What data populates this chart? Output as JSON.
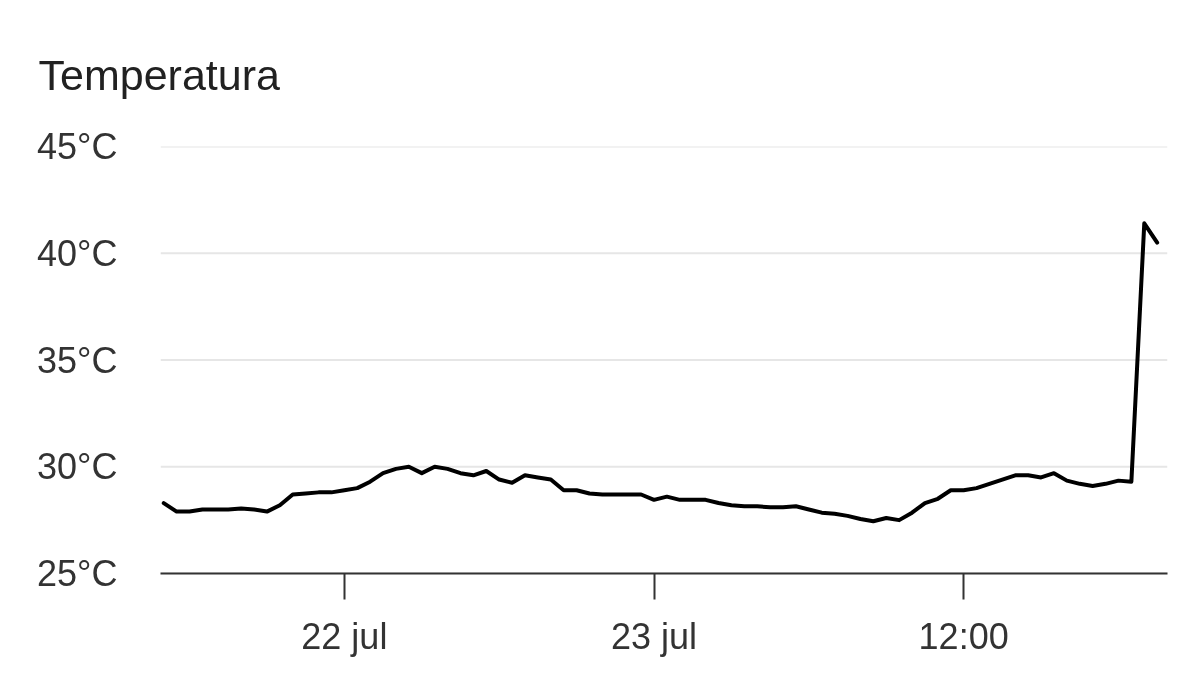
{
  "chart_data": {
    "type": "line",
    "title": "Temperatura",
    "categories": [
      null,
      null,
      null,
      null,
      null,
      null,
      null,
      null,
      null,
      null,
      null,
      null,
      null,
      null,
      "22 jul",
      null,
      null,
      null,
      null,
      null,
      null,
      null,
      null,
      null,
      null,
      null,
      null,
      null,
      null,
      null,
      null,
      null,
      null,
      null,
      null,
      null,
      null,
      null,
      "23 jul",
      null,
      null,
      null,
      null,
      null,
      null,
      null,
      null,
      null,
      null,
      null,
      null,
      null,
      null,
      null,
      null,
      null,
      null,
      null,
      null,
      null,
      null,
      null,
      "12:00",
      null,
      null,
      null,
      null,
      null,
      null,
      null,
      null,
      null,
      null,
      null,
      null,
      null,
      null,
      null
    ],
    "series": [
      {
        "color": "#000000",
        "values": [
          28.3,
          27.9,
          27.9,
          28.0,
          28.0,
          28.0,
          28.05,
          28.0,
          27.9,
          28.2,
          28.7,
          28.75,
          28.8,
          28.8,
          28.9,
          29.0,
          29.3,
          29.7,
          29.9,
          30.0,
          29.7,
          30.0,
          29.9,
          29.7,
          29.6,
          29.8,
          29.4,
          29.25,
          29.6,
          29.5,
          29.4,
          28.9,
          28.9,
          28.75,
          28.7,
          28.7,
          28.7,
          28.7,
          28.45,
          28.6,
          28.45,
          28.45,
          28.45,
          28.3,
          28.2,
          28.15,
          28.15,
          28.1,
          28.1,
          28.15,
          28.0,
          27.85,
          27.8,
          27.7,
          27.55,
          27.45,
          27.6,
          27.5,
          27.85,
          28.3,
          28.5,
          28.9,
          28.9,
          29.0,
          29.2,
          29.4,
          29.6,
          29.6,
          29.5,
          29.7,
          29.35,
          29.2,
          29.1,
          29.2,
          29.35,
          29.3,
          41.4,
          40.5
        ]
      }
    ],
    "ylim": [
      25,
      45
    ],
    "yticks": [
      {
        "value": 25,
        "label": "25°C"
      },
      {
        "value": 30,
        "label": "30°C"
      },
      {
        "value": 35,
        "label": "35°C"
      },
      {
        "value": 40,
        "label": "40°C"
      },
      {
        "value": 45,
        "label": "45°C"
      }
    ],
    "grid": "y",
    "line_style": "solid"
  }
}
